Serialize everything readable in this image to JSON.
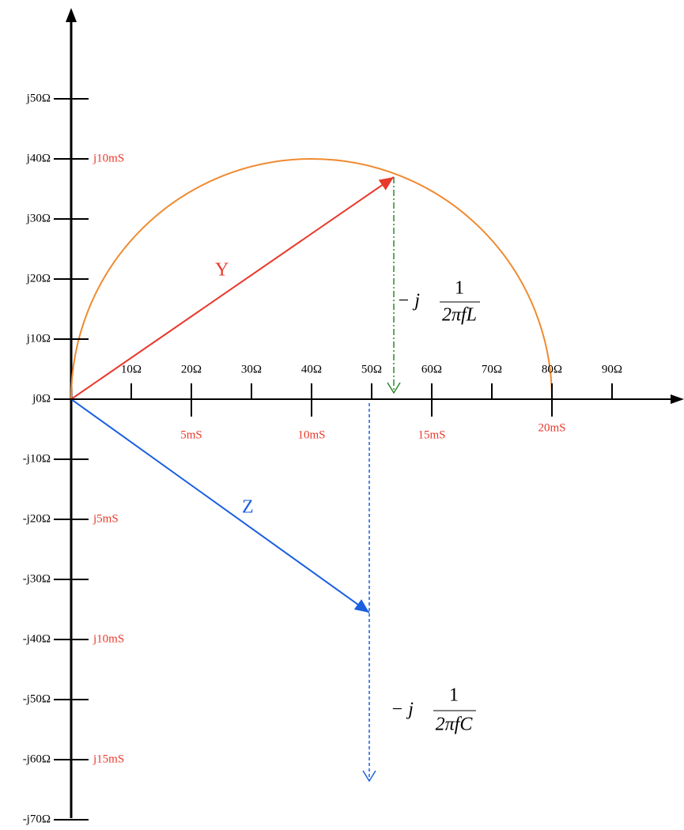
{
  "impedance_axis_labels": [
    "j50Ω",
    "j40Ω",
    "j30Ω",
    "j20Ω",
    "j10Ω",
    "j0Ω",
    "-j10Ω",
    "-j20Ω",
    "-j30Ω",
    "-j40Ω",
    "-j50Ω",
    "-j60Ω",
    "-j70Ω"
  ],
  "resistance_axis_labels": [
    "10Ω",
    "20Ω",
    "30Ω",
    "40Ω",
    "50Ω",
    "60Ω",
    "70Ω",
    "80Ω",
    "90Ω"
  ],
  "conductance_axis_labels": [
    "5mS",
    "10mS",
    "15mS",
    "20mS"
  ],
  "susceptance_axis_labels": {
    "j40Ω": "j10mS",
    "-j20Ω": "j5mS",
    "-j40Ω": "j10mS",
    "-j60Ω": "j15mS"
  },
  "vectors": {
    "admittance": "Y",
    "impedance": "Z"
  },
  "formula_inductive": {
    "prefix": "− j",
    "numerator": "1",
    "denominator": "2πfL"
  },
  "formula_capacitive": {
    "prefix": "− j",
    "numerator": "1",
    "denominator": "2πfC"
  }
}
